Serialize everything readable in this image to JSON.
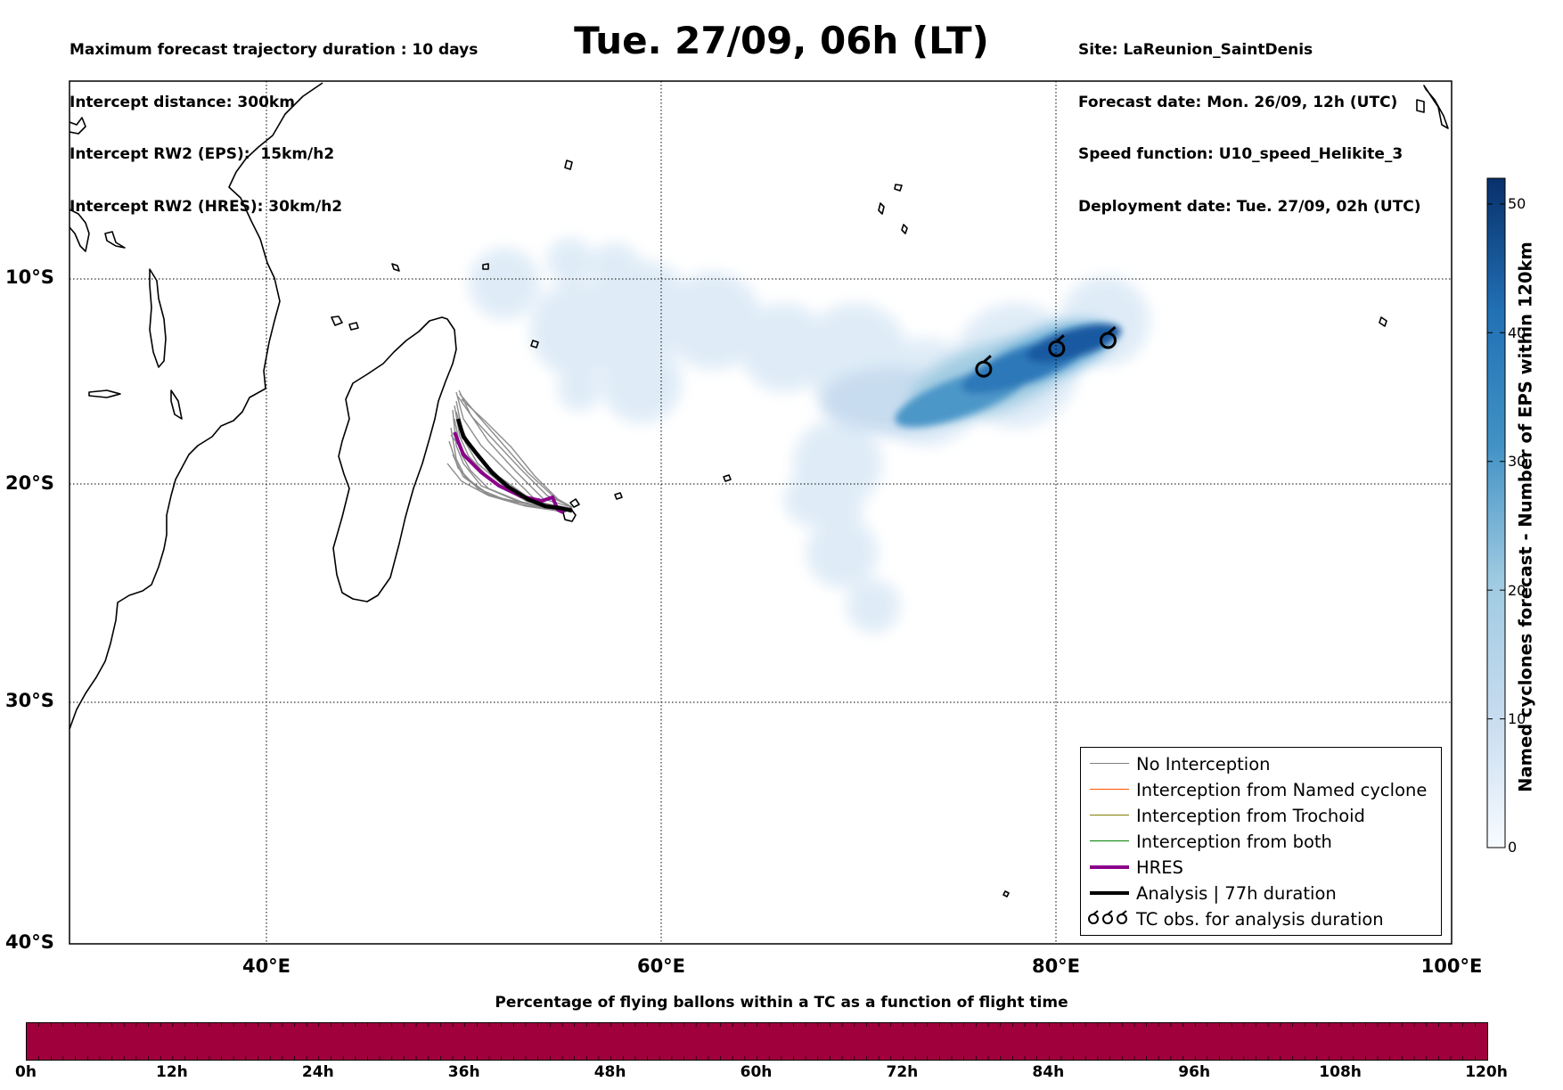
{
  "header": {
    "left_lines": [
      "Maximum forecast trajectory duration : 10 days",
      "Intercept distance: 300km",
      "Intercept RW2 (EPS):  15km/h2",
      "Intercept RW2 (HRES): 30km/h2"
    ],
    "title": "Tue. 27/09, 06h (LT)",
    "right_lines": [
      "Site: LaReunion_SaintDenis",
      "Forecast date: Mon. 26/09, 12h (UTC)",
      "Speed function: U10_speed_Helikite_3",
      "Deployment date: Tue. 27/09, 02h (UTC)"
    ]
  },
  "map": {
    "lat_labels": [
      "10°S",
      "20°S",
      "30°S",
      "40°S"
    ],
    "lon_labels": [
      "40°E",
      "60°E",
      "80°E",
      "100°E"
    ],
    "lat_grid": [
      -10,
      -20,
      -30
    ],
    "lon_grid": [
      40,
      60,
      80
    ],
    "extent": {
      "lon_min": 30,
      "lon_max": 100,
      "lat_max": 0,
      "lat_min": -40
    },
    "tc_obs": [
      {
        "lon": 76.3,
        "lat": -14.4
      },
      {
        "lon": 80.0,
        "lat": -13.4
      },
      {
        "lon": 82.6,
        "lat": -13.0
      }
    ],
    "colors": {
      "no_interception": "#808080",
      "named_cyclone": "#ff5500",
      "trochoid": "#808000",
      "both": "#008000",
      "hres": "#8b008b",
      "analysis": "#000000",
      "density_low": "#deebf7",
      "density_high": "#08306b"
    }
  },
  "legend": {
    "items": [
      {
        "label": "No Interception",
        "style": "thin",
        "color": "#808080"
      },
      {
        "label": "Interception from Named cyclone",
        "style": "thin",
        "color": "#ff5500"
      },
      {
        "label": "Interception from Trochoid",
        "style": "thin",
        "color": "#808000"
      },
      {
        "label": "Interception from both",
        "style": "thin",
        "color": "#008000"
      },
      {
        "label": "HRES",
        "style": "thick",
        "color": "#8b008b"
      },
      {
        "label": "Analysis | 77h duration",
        "style": "thick",
        "color": "#000000"
      },
      {
        "label": "TC obs. for analysis duration",
        "style": "symbol",
        "color": "#000000"
      }
    ]
  },
  "colorbar": {
    "title": "Named cyclones forecast - Number of EPS within 120km",
    "ticks": [
      "0",
      "10",
      "20",
      "30",
      "40",
      "50"
    ],
    "min": 0,
    "max": 52
  },
  "progress": {
    "title": "Percentage of flying ballons within a TC as a function of flight time",
    "ticks": [
      "0h",
      "12h",
      "24h",
      "36h",
      "48h",
      "60h",
      "72h",
      "84h",
      "96h",
      "108h",
      "120h"
    ],
    "fill_color": "#a0003c",
    "fill_fraction": 1.0
  }
}
